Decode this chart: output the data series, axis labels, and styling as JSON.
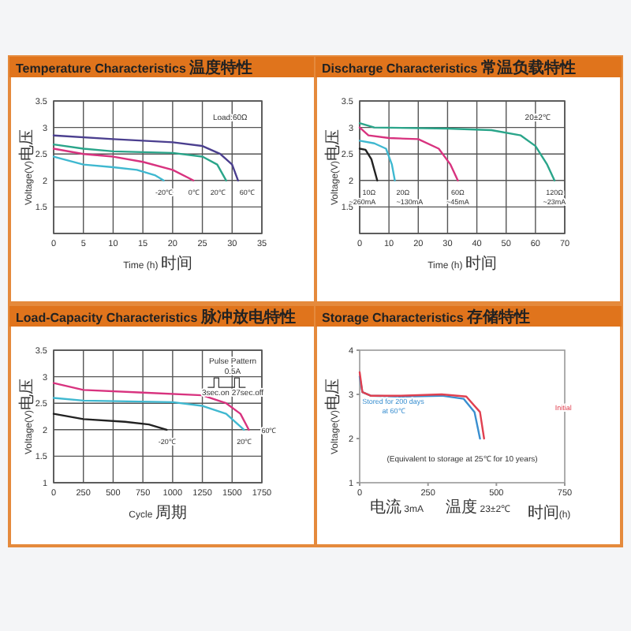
{
  "chart_data": [
    {
      "type": "line",
      "title": "Temperature Characteristics 温度特性",
      "xlabel": "Time (h) 时间",
      "ylabel": "Voltage(V)电压",
      "xlim": [
        0,
        35
      ],
      "xticks": [
        0,
        5,
        10,
        15,
        20,
        25,
        30,
        35
      ],
      "ylim": [
        1.0,
        3.5
      ],
      "yticks": [
        {
          "value": 1.0,
          "label": null
        },
        1.5,
        2.0,
        2.5,
        3.0,
        3.5
      ],
      "grid": true,
      "annotations": [
        "Load:60Ω"
      ],
      "series": [
        {
          "name": "-20℃",
          "color": "#3fb8d0",
          "x": [
            0,
            5,
            10,
            14,
            17,
            18.5
          ],
          "values": [
            2.45,
            2.3,
            2.25,
            2.2,
            2.1,
            2.0
          ]
        },
        {
          "name": "0℃",
          "color": "#d8337f",
          "x": [
            0,
            5,
            10,
            15,
            20,
            23.5
          ],
          "values": [
            2.6,
            2.5,
            2.45,
            2.35,
            2.2,
            2.0
          ]
        },
        {
          "name": "20℃",
          "color": "#2aa58a",
          "x": [
            0,
            5,
            10,
            20,
            25,
            27.5,
            29
          ],
          "values": [
            2.68,
            2.6,
            2.55,
            2.52,
            2.45,
            2.3,
            2.0
          ]
        },
        {
          "name": "60℃",
          "color": "#4b3f8f",
          "x": [
            0,
            10,
            20,
            25,
            28,
            30,
            31
          ],
          "values": [
            2.85,
            2.78,
            2.72,
            2.65,
            2.5,
            2.3,
            2.0
          ]
        }
      ]
    },
    {
      "type": "line",
      "title": "Discharge Characteristics 常温负载特性",
      "xlabel": "Time (h) 时间",
      "ylabel": "Voltage(V)电压",
      "xlim": [
        0,
        70
      ],
      "xticks": [
        0,
        10,
        20,
        30,
        40,
        50,
        60,
        70
      ],
      "ylim": [
        1.0,
        3.5
      ],
      "yticks": [
        {
          "value": 1.0,
          "label": null
        },
        1.5,
        2.0,
        2.5,
        3.0,
        3.5
      ],
      "grid": true,
      "annotations": [
        "20±2℃"
      ],
      "series": [
        {
          "name": "10Ω\n~260mA",
          "color": "#222222",
          "x": [
            0,
            2,
            4,
            6
          ],
          "values": [
            2.6,
            2.58,
            2.4,
            2.0
          ]
        },
        {
          "name": "20Ω\n~130mA",
          "color": "#3fb8d0",
          "x": [
            0,
            5,
            9,
            11,
            12
          ],
          "values": [
            2.75,
            2.7,
            2.6,
            2.3,
            2.0
          ]
        },
        {
          "name": "60Ω\n~45mA",
          "color": "#d8337f",
          "x": [
            0,
            3,
            10,
            20,
            27,
            31,
            33.5
          ],
          "values": [
            3.0,
            2.85,
            2.8,
            2.78,
            2.6,
            2.3,
            2.0
          ]
        },
        {
          "name": "120Ω\n~23mA",
          "color": "#2aa58a",
          "x": [
            0,
            5,
            30,
            45,
            55,
            60,
            64,
            66.5
          ],
          "values": [
            3.08,
            3.0,
            2.98,
            2.95,
            2.85,
            2.65,
            2.3,
            2.0
          ]
        }
      ]
    },
    {
      "type": "line",
      "title": "Load-Capacity Characteristics 脉冲放电特性",
      "xlabel": "Cycle 周期",
      "ylabel": "Voltage(V)电压",
      "xlim": [
        0,
        1750
      ],
      "xticks": [
        0,
        250,
        500,
        750,
        1000,
        1250,
        1500,
        1750
      ],
      "ylim": [
        1.0,
        3.5
      ],
      "yticks": [
        1.0,
        1.5,
        2.0,
        2.5,
        3.0,
        3.5
      ],
      "grid": true,
      "annotations": [
        "Pulse Pattern",
        "0.5A",
        "3sec.on 27sec.off"
      ],
      "series": [
        {
          "name": "60℃",
          "color": "#d8337f",
          "x": [
            0,
            250,
            750,
            1250,
            1450,
            1570,
            1640
          ],
          "values": [
            2.88,
            2.75,
            2.7,
            2.65,
            2.5,
            2.3,
            2.0
          ]
        },
        {
          "name": "20℃",
          "color": "#3fb8d0",
          "x": [
            0,
            250,
            1000,
            1250,
            1450,
            1600
          ],
          "values": [
            2.6,
            2.55,
            2.52,
            2.45,
            2.3,
            2.0
          ]
        },
        {
          "name": "-20℃",
          "color": "#222222",
          "x": [
            0,
            250,
            600,
            800,
            950
          ],
          "values": [
            2.3,
            2.2,
            2.15,
            2.1,
            2.0
          ]
        }
      ]
    },
    {
      "type": "line",
      "title": "Storage Characteristics 存储特性",
      "xlabel": "时间(h)",
      "ylabel": "Voltage(V)电压",
      "xlim": [
        0,
        750
      ],
      "xticks": [
        0,
        250,
        500,
        750
      ],
      "ylim": [
        1,
        4
      ],
      "yticks": [
        1,
        2,
        3,
        4
      ],
      "grid": false,
      "annotations": [
        "(Equivalent to storage at 25℃ for 10 years)",
        "电流 3mA",
        "温度 23±2℃"
      ],
      "series": [
        {
          "name": "Stored for 200 days\nat 60℃",
          "color": "#3a8fd0",
          "x": [
            0,
            10,
            40,
            150,
            300,
            380,
            420,
            440
          ],
          "values": [
            3.4,
            3.05,
            2.97,
            2.95,
            2.97,
            2.9,
            2.6,
            2.0
          ]
        },
        {
          "name": "Initial",
          "color": "#e04050",
          "x": [
            0,
            10,
            40,
            150,
            300,
            390,
            440,
            455
          ],
          "values": [
            3.5,
            3.05,
            2.97,
            2.97,
            3.0,
            2.95,
            2.6,
            2.0
          ]
        }
      ]
    }
  ]
}
